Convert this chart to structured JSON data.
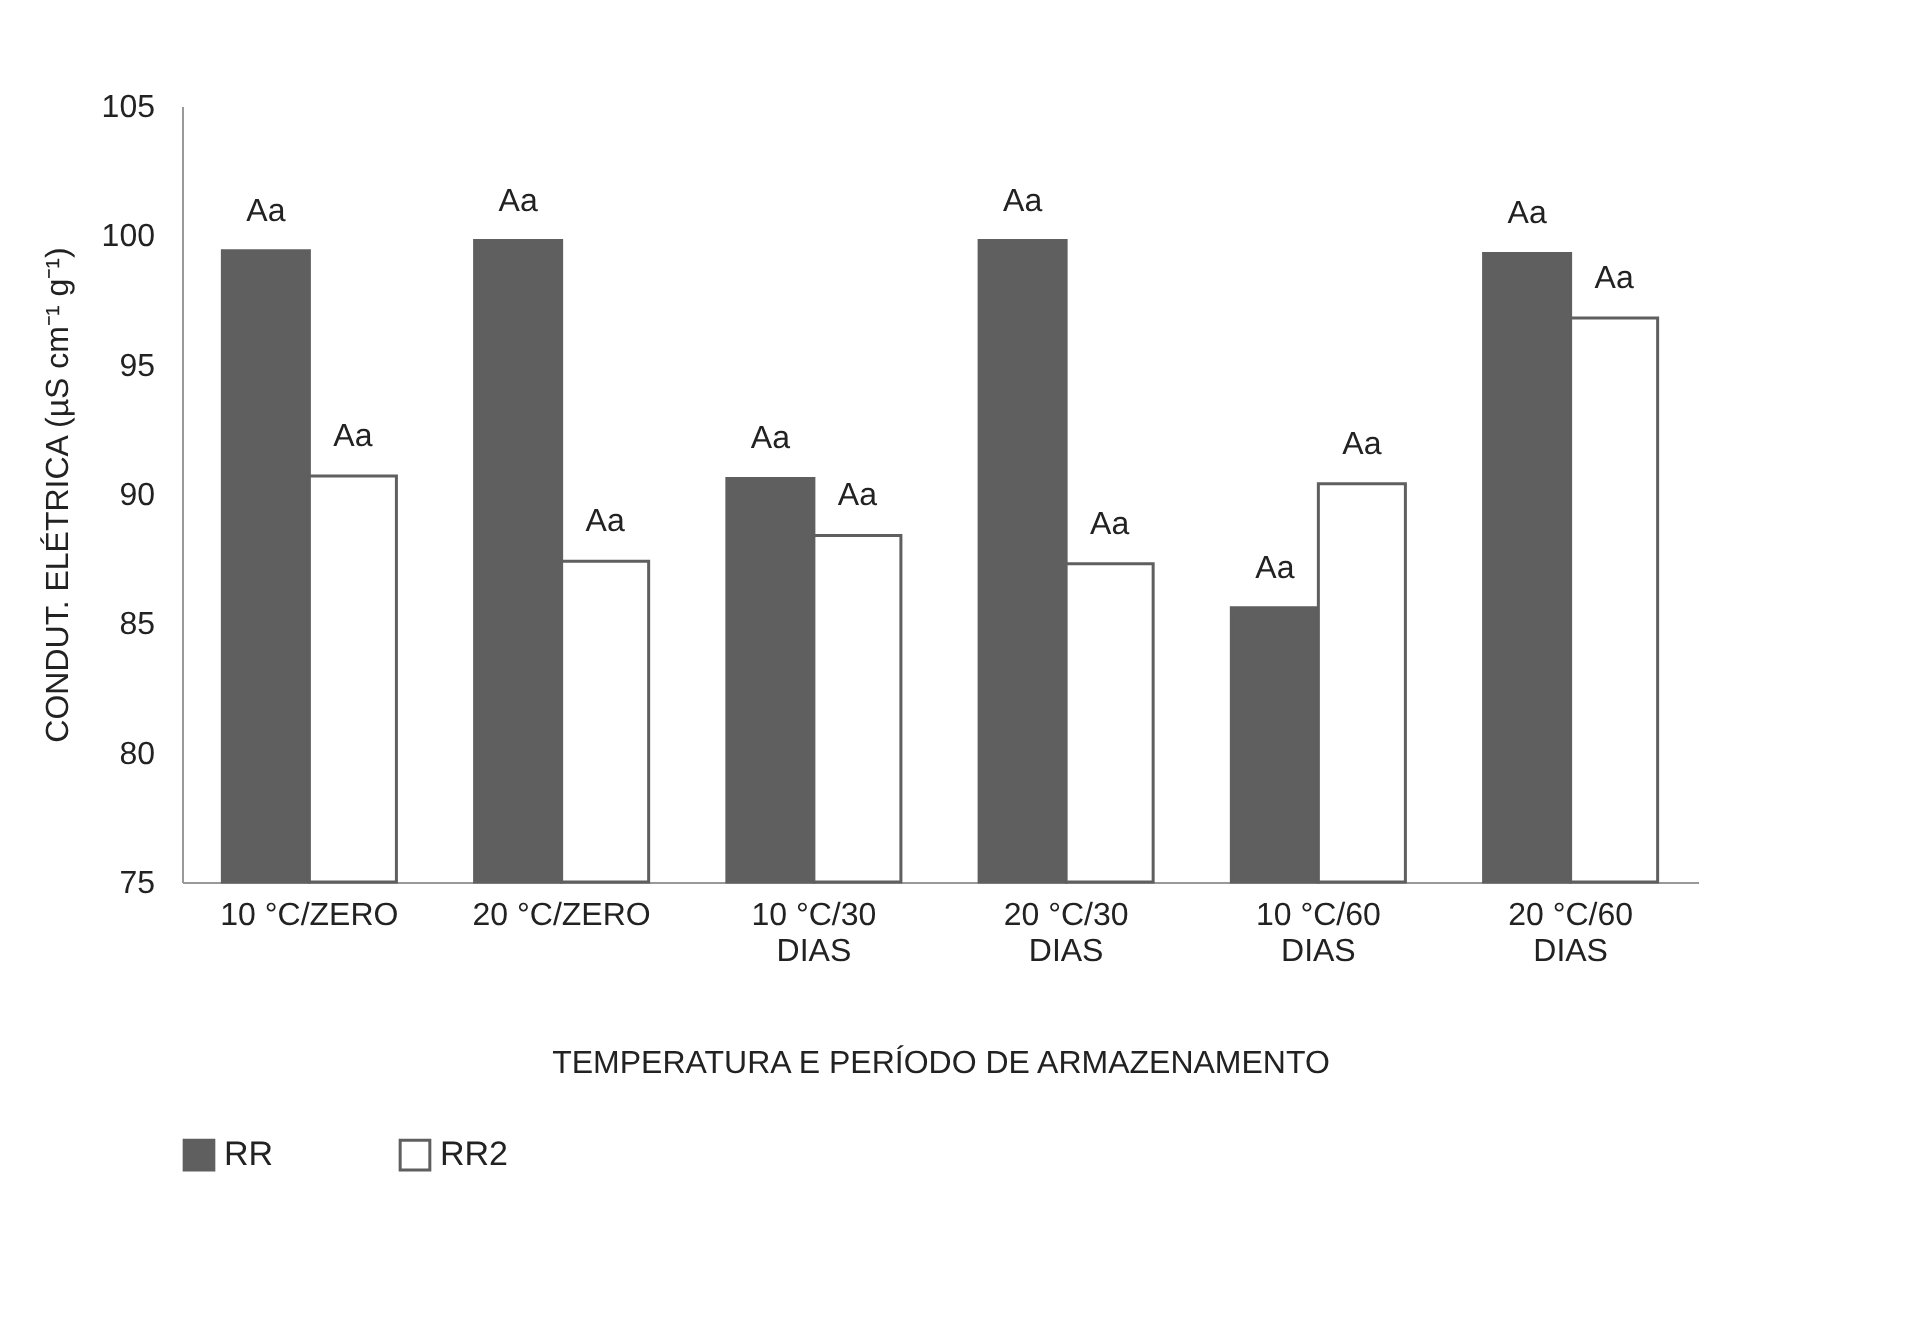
{
  "chart_data": {
    "type": "bar",
    "xlabel": "TEMPERATURA E PERÍODO DE ARMAZENAMENTO",
    "ylabel": "CONDUT. ELÉTRICA (µS cm⁻¹ g⁻¹)",
    "categories": [
      "10 °C/ZERO",
      "20 °C/ZERO",
      "10 °C/30 DIAS",
      "20 °C/30 DIAS",
      "10 °C/60 DIAS",
      "20 °C/60 DIAS"
    ],
    "series": [
      {
        "name": "RR",
        "color": "#5f5f5f",
        "values": [
          99.4,
          99.8,
          90.6,
          99.8,
          85.6,
          99.3
        ],
        "value_labels": [
          "Aa",
          "Aa",
          "Aa",
          "Aa",
          "Aa",
          "Aa"
        ]
      },
      {
        "name": "RR2",
        "color": "#ffffff",
        "values": [
          90.7,
          87.4,
          88.4,
          87.3,
          90.4,
          96.8
        ],
        "value_labels": [
          "Aa",
          "Aa",
          "Aa",
          "Aa",
          "Aa",
          "Aa"
        ]
      }
    ],
    "ylim": [
      75,
      105
    ],
    "yticks": [
      75,
      80,
      85,
      90,
      95,
      100,
      105
    ],
    "grid": false,
    "legend": "bottom"
  }
}
